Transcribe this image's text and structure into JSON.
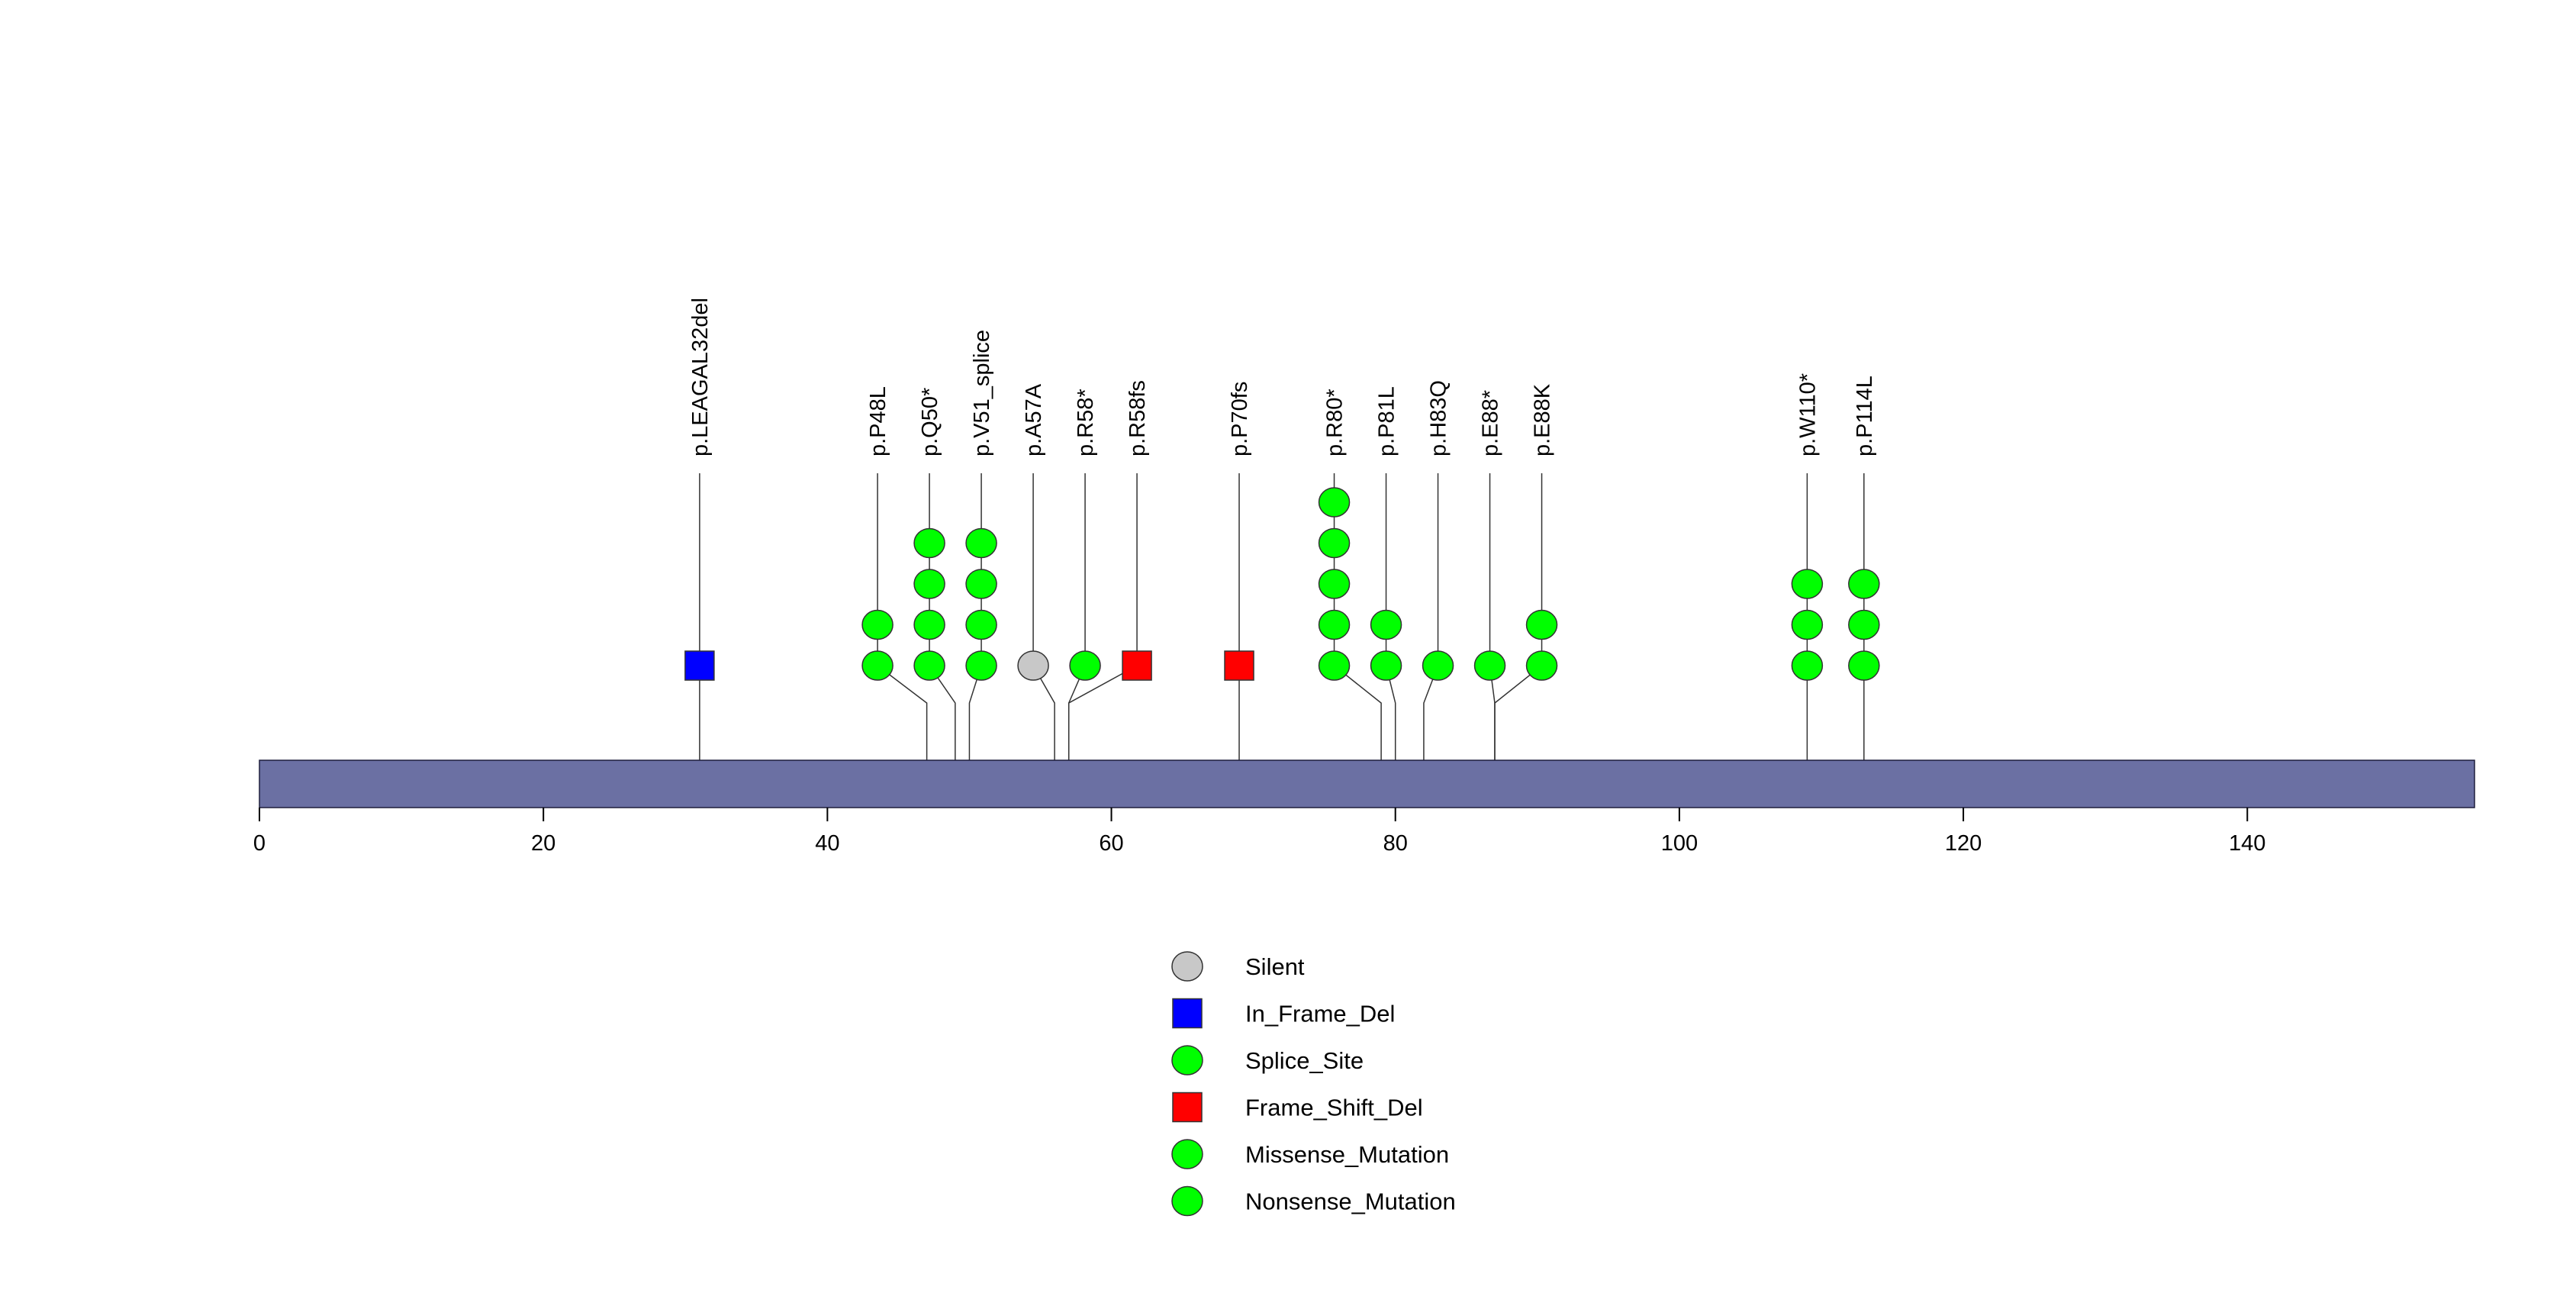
{
  "chart_data": {
    "type": "lollipop",
    "title": "",
    "xlabel": "",
    "ylabel": "",
    "xlim": [
      0,
      156
    ],
    "x_ticks": [
      0,
      20,
      40,
      60,
      80,
      100,
      120,
      140
    ],
    "protein_length": 156,
    "colors": {
      "protein_bar": "#6b70a3",
      "Silent": "#c8c8c8",
      "In_Frame_Del": "#0000ff",
      "Splice_Site": "#00ff00",
      "Frame_Shift_Del": "#ff0000",
      "Missense_Mutation": "#00ff00",
      "Nonsense_Mutation": "#00ff00"
    },
    "mutations": [
      {
        "label": "p.LEAGAL32del",
        "position": 31,
        "count": 1,
        "type": "In_Frame_Del"
      },
      {
        "label": "p.P48L",
        "position": 47,
        "count": 2,
        "type": "Missense_Mutation"
      },
      {
        "label": "p.Q50*",
        "position": 49,
        "count": 4,
        "type": "Nonsense_Mutation"
      },
      {
        "label": "p.V51_splice",
        "position": 50,
        "count": 4,
        "type": "Splice_Site"
      },
      {
        "label": "p.A57A",
        "position": 56,
        "count": 1,
        "type": "Silent"
      },
      {
        "label": "p.R58*",
        "position": 57,
        "count": 1,
        "type": "Nonsense_Mutation"
      },
      {
        "label": "p.R58fs",
        "position": 57,
        "count": 1,
        "type": "Frame_Shift_Del"
      },
      {
        "label": "p.P70fs",
        "position": 69,
        "count": 1,
        "type": "Frame_Shift_Del"
      },
      {
        "label": "p.R80*",
        "position": 79,
        "count": 5,
        "type": "Nonsense_Mutation"
      },
      {
        "label": "p.P81L",
        "position": 80,
        "count": 2,
        "type": "Missense_Mutation"
      },
      {
        "label": "p.H83Q",
        "position": 82,
        "count": 1,
        "type": "Missense_Mutation"
      },
      {
        "label": "p.E88*",
        "position": 87,
        "count": 1,
        "type": "Nonsense_Mutation"
      },
      {
        "label": "p.E88K",
        "position": 87,
        "count": 2,
        "type": "Missense_Mutation"
      },
      {
        "label": "p.W110*",
        "position": 109,
        "count": 3,
        "type": "Nonsense_Mutation"
      },
      {
        "label": "p.P114L",
        "position": 113,
        "count": 3,
        "type": "Missense_Mutation"
      }
    ],
    "legend": [
      {
        "label": "Silent",
        "shape": "circle",
        "color": "#c8c8c8"
      },
      {
        "label": "In_Frame_Del",
        "shape": "square",
        "color": "#0000ff"
      },
      {
        "label": "Splice_Site",
        "shape": "circle",
        "color": "#00ff00"
      },
      {
        "label": "Frame_Shift_Del",
        "shape": "square",
        "color": "#ff0000"
      },
      {
        "label": "Missense_Mutation",
        "shape": "circle",
        "color": "#00ff00"
      },
      {
        "label": "Nonsense_Mutation",
        "shape": "circle",
        "color": "#00ff00"
      }
    ]
  }
}
